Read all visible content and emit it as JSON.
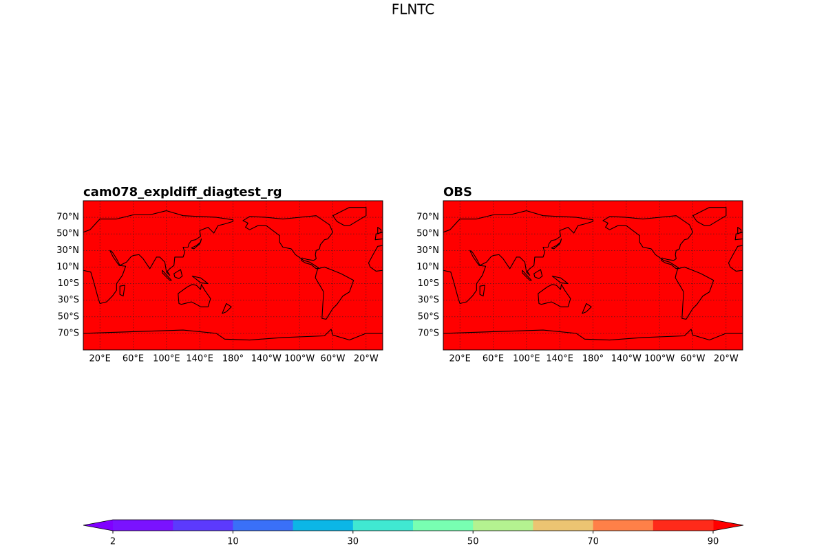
{
  "title": "FLNTC",
  "panels": [
    {
      "title": "cam078_expldiff_diagtest_rg",
      "fill_color": "#ff0000"
    },
    {
      "title": "OBS",
      "fill_color": "#ff0000"
    }
  ],
  "xticks": [
    {
      "value": 20,
      "label": "20°E"
    },
    {
      "value": 60,
      "label": "60°E"
    },
    {
      "value": 100,
      "label": "100°E"
    },
    {
      "value": 140,
      "label": "140°E"
    },
    {
      "value": 180,
      "label": "180°"
    },
    {
      "value": -140,
      "label": "140°W"
    },
    {
      "value": -100,
      "label": "100°W"
    },
    {
      "value": -60,
      "label": "60°W"
    },
    {
      "value": -20,
      "label": "20°W"
    }
  ],
  "yticks": [
    {
      "value": 70,
      "label": "70°N"
    },
    {
      "value": 50,
      "label": "50°N"
    },
    {
      "value": 30,
      "label": "30°N"
    },
    {
      "value": 10,
      "label": "10°N"
    },
    {
      "value": -10,
      "label": "10°S"
    },
    {
      "value": -30,
      "label": "30°S"
    },
    {
      "value": -50,
      "label": "50°S"
    },
    {
      "value": -70,
      "label": "70°S"
    }
  ],
  "colorbar": {
    "levels": [
      2,
      5,
      10,
      20,
      30,
      40,
      50,
      60,
      70,
      80,
      90
    ],
    "colors": [
      "#7a12ff",
      "#5c3afd",
      "#3a70f8",
      "#0cb6e6",
      "#40e8d2",
      "#78ffb2",
      "#b4f290",
      "#ecc472",
      "#ff8048",
      "#ff2a1a"
    ],
    "under_color": "#8000ff",
    "over_color": "#ff0000",
    "ticks": [
      2,
      10,
      30,
      50,
      70,
      90
    ]
  }
}
